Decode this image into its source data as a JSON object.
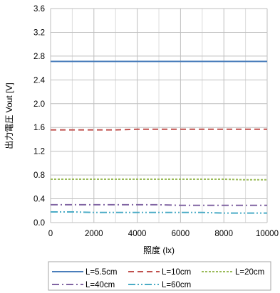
{
  "chart_data": {
    "type": "line",
    "xlabel": "照度 (lx)",
    "ylabel": "出力電圧 Vout [V]",
    "xlim": [
      0,
      10000
    ],
    "ylim": [
      0,
      3.6
    ],
    "x_tick_labels": [
      "0",
      "2000",
      "4000",
      "6000",
      "8000",
      "10000"
    ],
    "y_tick_labels": [
      "0.0",
      "0.4",
      "0.8",
      "1.2",
      "1.6",
      "2.0",
      "2.4",
      "2.8",
      "3.2",
      "3.6"
    ],
    "grid": true,
    "legend_position": "bottom",
    "x": [
      0,
      1000,
      2000,
      3000,
      4000,
      5000,
      6000,
      7000,
      8000,
      9000,
      10000
    ],
    "series": [
      {
        "name": "L=5.5cm",
        "color": "#4a7ebb",
        "line_style": "solid",
        "values": [
          2.71,
          2.71,
          2.71,
          2.71,
          2.71,
          2.71,
          2.71,
          2.71,
          2.71,
          2.71,
          2.71
        ]
      },
      {
        "name": "L=10cm",
        "color": "#c0504d",
        "line_style": "dashed",
        "values": [
          1.56,
          1.56,
          1.56,
          1.56,
          1.57,
          1.57,
          1.57,
          1.57,
          1.57,
          1.57,
          1.57
        ]
      },
      {
        "name": "L=20cm",
        "color": "#9bbb59",
        "line_style": "dotted",
        "values": [
          0.73,
          0.73,
          0.73,
          0.73,
          0.73,
          0.73,
          0.73,
          0.73,
          0.73,
          0.72,
          0.72
        ]
      },
      {
        "name": "L=40cm",
        "color": "#8064a2",
        "line_style": "dash-dot",
        "values": [
          0.3,
          0.3,
          0.3,
          0.3,
          0.3,
          0.3,
          0.29,
          0.29,
          0.29,
          0.29,
          0.29
        ]
      },
      {
        "name": "L=60cm",
        "color": "#4bacc6",
        "line_style": "dash-dot-dot",
        "values": [
          0.18,
          0.18,
          0.17,
          0.17,
          0.17,
          0.17,
          0.17,
          0.17,
          0.16,
          0.16,
          0.16
        ]
      }
    ]
  }
}
